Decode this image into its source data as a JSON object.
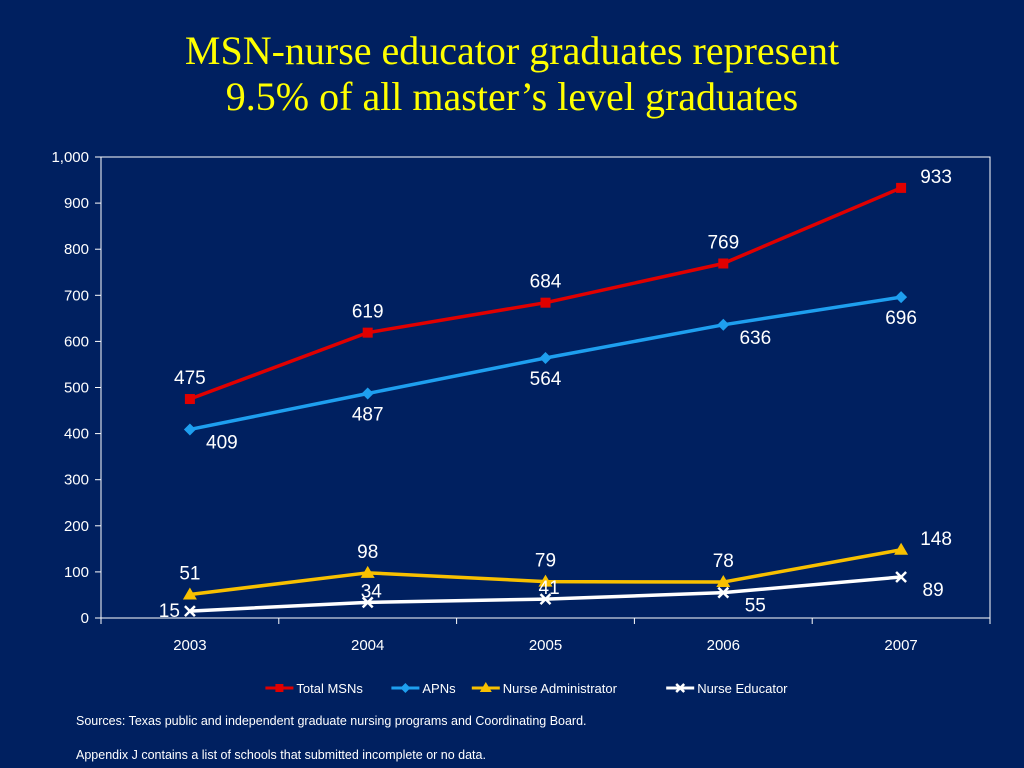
{
  "slide": {
    "title_line1": "MSN-nurse educator graduates represent",
    "title_line2": "9.5% of all master’s level graduates",
    "source_note": "Sources: Texas public and independent graduate nursing programs and Coordinating Board.",
    "appendix_note": "Appendix J contains a list of schools that submitted incomplete or no data."
  },
  "chart_data": {
    "type": "line",
    "title": "",
    "xlabel": "",
    "ylabel": "",
    "categories": [
      "2003",
      "2004",
      "2005",
      "2006",
      "2007"
    ],
    "ylim": [
      0,
      1000
    ],
    "yticks": [
      0,
      100,
      200,
      300,
      400,
      500,
      600,
      700,
      800,
      900,
      1000
    ],
    "ytick_labels": [
      "0",
      "100",
      "200",
      "300",
      "400",
      "500",
      "600",
      "700",
      "800",
      "900",
      "1,000"
    ],
    "grid": false,
    "legend_position": "bottom",
    "series": [
      {
        "name": "Total MSNs",
        "values": [
          475,
          619,
          684,
          769,
          933
        ],
        "color": "#E00000",
        "marker": "square",
        "labels": [
          "475",
          "619",
          "684",
          "769",
          "933"
        ],
        "label_positions": [
          "above",
          "above",
          "above",
          "above",
          "above-right"
        ]
      },
      {
        "name": "APNs",
        "values": [
          409,
          487,
          564,
          636,
          696
        ],
        "color": "#1E9FEF",
        "marker": "diamond",
        "labels": [
          "409",
          "487",
          "564",
          "636",
          "696"
        ],
        "label_positions": [
          "below-right",
          "below",
          "below",
          "below-right",
          "below"
        ]
      },
      {
        "name": "Nurse Administrator",
        "values": [
          51,
          98,
          79,
          78,
          148
        ],
        "color": "#F8C000",
        "marker": "triangle",
        "labels": [
          "51",
          "98",
          "79",
          "78",
          "148"
        ],
        "label_positions": [
          "above",
          "above",
          "above",
          "above",
          "above-right"
        ]
      },
      {
        "name": "Nurse Educator",
        "values": [
          15,
          34,
          41,
          55,
          89
        ],
        "color": "#FFFFFF",
        "marker": "x",
        "labels": [
          "15",
          "34",
          "41",
          "55",
          "89"
        ],
        "label_positions": [
          "left",
          "right-mid",
          "right-mid",
          "below-right",
          "below-right"
        ]
      }
    ]
  }
}
